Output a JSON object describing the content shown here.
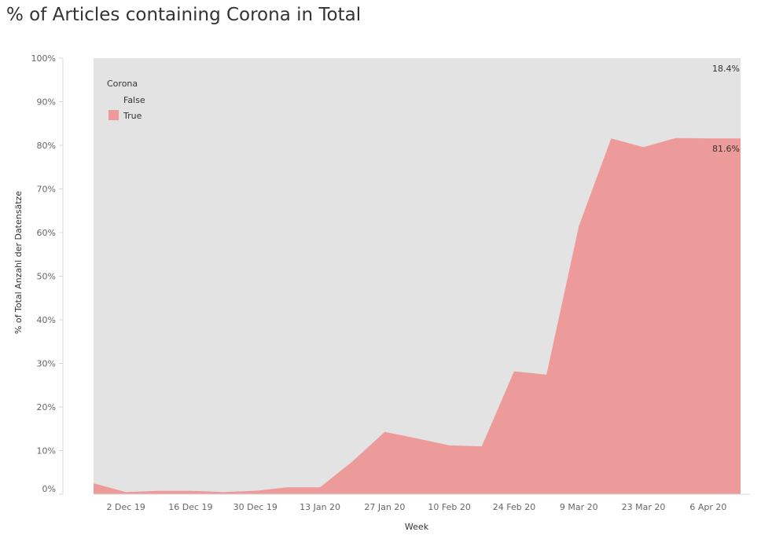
{
  "chart_data": {
    "type": "area",
    "stacked": true,
    "normalized_percent": true,
    "title": "% of Articles containing Corona in Total",
    "xlabel": "Week",
    "ylabel": "% of Total Anzahl der Datensätze",
    "ylim": [
      0,
      100
    ],
    "y_ticks": [
      "0%",
      "10%",
      "20%",
      "30%",
      "40%",
      "50%",
      "60%",
      "70%",
      "80%",
      "90%",
      "100%"
    ],
    "x_tick_labels": [
      "2 Dec 19",
      "16 Dec 19",
      "30 Dec 19",
      "13 Jan 20",
      "27 Jan 20",
      "10 Feb 20",
      "24 Feb 20",
      "9 Mar 20",
      "23 Mar 20",
      "6 Apr 20"
    ],
    "x": [
      "25 Nov 19",
      "2 Dec 19",
      "9 Dec 19",
      "16 Dec 19",
      "23 Dec 19",
      "30 Dec 19",
      "6 Jan 20",
      "13 Jan 20",
      "20 Jan 20",
      "27 Jan 20",
      "3 Feb 20",
      "10 Feb 20",
      "17 Feb 20",
      "24 Feb 20",
      "2 Mar 20",
      "9 Mar 20",
      "16 Mar 20",
      "23 Mar 20",
      "30 Mar 20",
      "6 Apr 20",
      "13 Apr 20"
    ],
    "series": [
      {
        "name": "True",
        "values": [
          2.5,
          0.5,
          0.8,
          0.8,
          0.5,
          0.8,
          1.6,
          1.6,
          7.5,
          14.3,
          12.8,
          11.2,
          11.0,
          28.2,
          27.4,
          61.5,
          81.6,
          79.6,
          81.7,
          81.6,
          81.6
        ]
      },
      {
        "name": "False",
        "values": [
          97.5,
          99.5,
          99.2,
          99.2,
          99.5,
          99.2,
          98.4,
          98.4,
          92.5,
          85.7,
          87.2,
          88.8,
          89.0,
          71.8,
          72.6,
          38.5,
          18.4,
          20.4,
          18.3,
          18.4,
          18.4
        ]
      }
    ],
    "legend": {
      "title": "Corona",
      "placement": "top-left",
      "items": [
        "False",
        "True"
      ]
    },
    "end_labels": {
      "True": "81.6%",
      "False": "18.4%"
    },
    "colors": {
      "True": "#ed9a9a",
      "False": "#e3e3e3"
    },
    "grid": false
  }
}
